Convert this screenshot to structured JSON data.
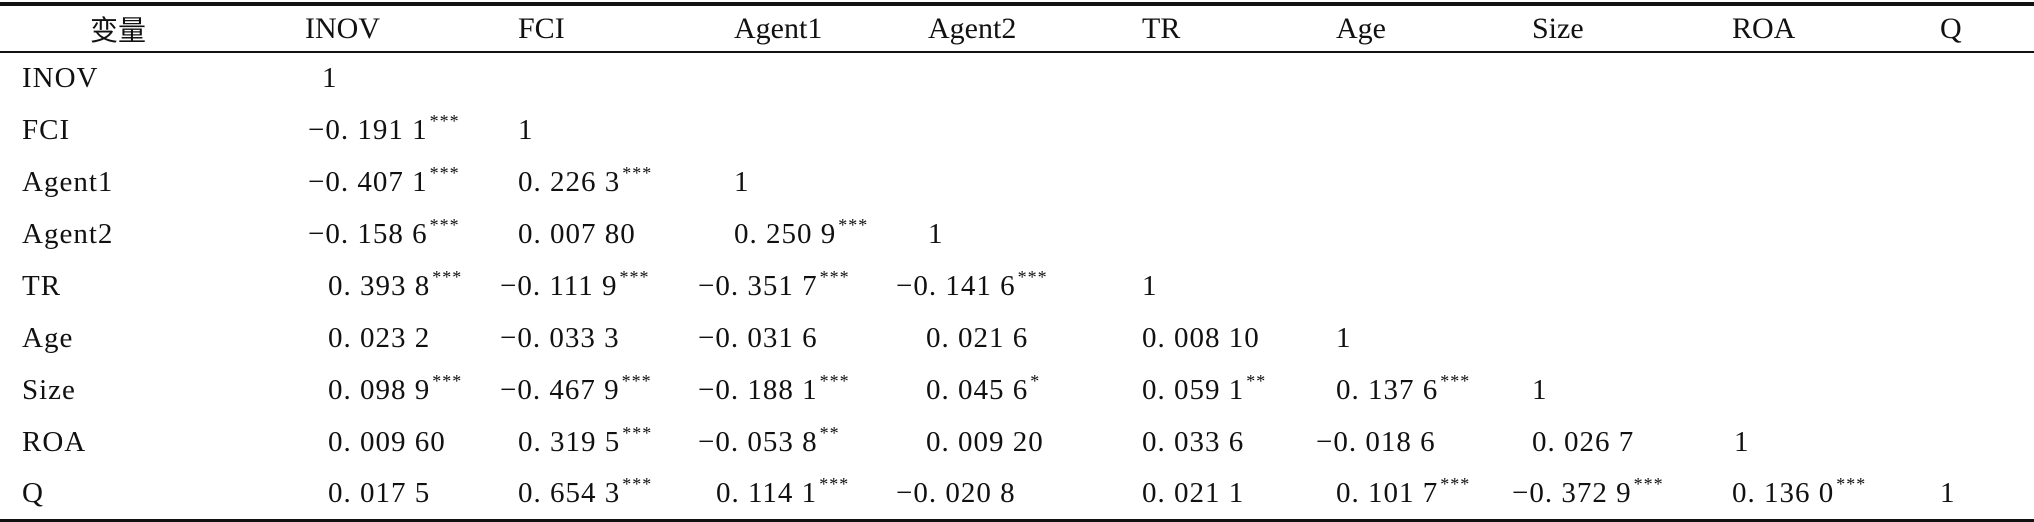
{
  "table": {
    "header": [
      "变量",
      "INOV",
      "FCI",
      "Agent1",
      "Agent2",
      "TR",
      "Age",
      "Size",
      "ROA",
      "Q"
    ],
    "rows": [
      {
        "label": "INOV",
        "cells": [
          {
            "v": "1",
            "s": ""
          },
          {
            "v": "",
            "s": ""
          },
          {
            "v": "",
            "s": ""
          },
          {
            "v": "",
            "s": ""
          },
          {
            "v": "",
            "s": ""
          },
          {
            "v": "",
            "s": ""
          },
          {
            "v": "",
            "s": ""
          },
          {
            "v": "",
            "s": ""
          },
          {
            "v": "",
            "s": ""
          }
        ]
      },
      {
        "label": "FCI",
        "cells": [
          {
            "v": "−0. 191 1",
            "s": "***"
          },
          {
            "v": "1",
            "s": ""
          },
          {
            "v": "",
            "s": ""
          },
          {
            "v": "",
            "s": ""
          },
          {
            "v": "",
            "s": ""
          },
          {
            "v": "",
            "s": ""
          },
          {
            "v": "",
            "s": ""
          },
          {
            "v": "",
            "s": ""
          },
          {
            "v": "",
            "s": ""
          }
        ]
      },
      {
        "label": "Agent1",
        "cells": [
          {
            "v": "−0. 407 1",
            "s": "***"
          },
          {
            "v": "0. 226 3",
            "s": "***"
          },
          {
            "v": "1",
            "s": ""
          },
          {
            "v": "",
            "s": ""
          },
          {
            "v": "",
            "s": ""
          },
          {
            "v": "",
            "s": ""
          },
          {
            "v": "",
            "s": ""
          },
          {
            "v": "",
            "s": ""
          },
          {
            "v": "",
            "s": ""
          }
        ]
      },
      {
        "label": "Agent2",
        "cells": [
          {
            "v": "−0. 158 6",
            "s": "***"
          },
          {
            "v": "0. 007 80",
            "s": ""
          },
          {
            "v": "0. 250 9",
            "s": "***"
          },
          {
            "v": "1",
            "s": ""
          },
          {
            "v": "",
            "s": ""
          },
          {
            "v": "",
            "s": ""
          },
          {
            "v": "",
            "s": ""
          },
          {
            "v": "",
            "s": ""
          },
          {
            "v": "",
            "s": ""
          }
        ]
      },
      {
        "label": "TR",
        "cells": [
          {
            "v": "0. 393 8",
            "s": "***"
          },
          {
            "v": "−0. 111 9",
            "s": "***"
          },
          {
            "v": "−0. 351 7",
            "s": "***"
          },
          {
            "v": "−0. 141 6",
            "s": "***"
          },
          {
            "v": "1",
            "s": ""
          },
          {
            "v": "",
            "s": ""
          },
          {
            "v": "",
            "s": ""
          },
          {
            "v": "",
            "s": ""
          },
          {
            "v": "",
            "s": ""
          }
        ]
      },
      {
        "label": "Age",
        "cells": [
          {
            "v": "0. 023 2",
            "s": ""
          },
          {
            "v": "−0. 033 3",
            "s": ""
          },
          {
            "v": "−0. 031 6",
            "s": ""
          },
          {
            "v": "0. 021 6",
            "s": ""
          },
          {
            "v": "0. 008 10",
            "s": ""
          },
          {
            "v": "1",
            "s": ""
          },
          {
            "v": "",
            "s": ""
          },
          {
            "v": "",
            "s": ""
          },
          {
            "v": "",
            "s": ""
          }
        ]
      },
      {
        "label": "Size",
        "cells": [
          {
            "v": "0. 098 9",
            "s": "***"
          },
          {
            "v": "−0. 467 9",
            "s": "***"
          },
          {
            "v": "−0. 188 1",
            "s": "***"
          },
          {
            "v": "0. 045 6",
            "s": "*"
          },
          {
            "v": "0. 059 1",
            "s": "**"
          },
          {
            "v": "0. 137 6",
            "s": "***"
          },
          {
            "v": "1",
            "s": ""
          },
          {
            "v": "",
            "s": ""
          },
          {
            "v": "",
            "s": ""
          }
        ]
      },
      {
        "label": "ROA",
        "cells": [
          {
            "v": "0. 009 60",
            "s": ""
          },
          {
            "v": "0. 319 5",
            "s": "***"
          },
          {
            "v": "−0. 053 8",
            "s": "**"
          },
          {
            "v": "0. 009 20",
            "s": ""
          },
          {
            "v": "0. 033 6",
            "s": ""
          },
          {
            "v": "−0. 018 6",
            "s": ""
          },
          {
            "v": "0. 026 7",
            "s": ""
          },
          {
            "v": "1",
            "s": ""
          },
          {
            "v": "",
            "s": ""
          }
        ]
      },
      {
        "label": "Q",
        "cells": [
          {
            "v": "0. 017 5",
            "s": ""
          },
          {
            "v": "0. 654 3",
            "s": "***"
          },
          {
            "v": "0. 114 1",
            "s": "***"
          },
          {
            "v": "−0. 020 8",
            "s": ""
          },
          {
            "v": "0. 021 1",
            "s": ""
          },
          {
            "v": "0. 101 7",
            "s": "***"
          },
          {
            "v": "−0. 372 9",
            "s": "***"
          },
          {
            "v": "0. 136 0",
            "s": "***"
          },
          {
            "v": "1",
            "s": ""
          }
        ]
      }
    ]
  }
}
